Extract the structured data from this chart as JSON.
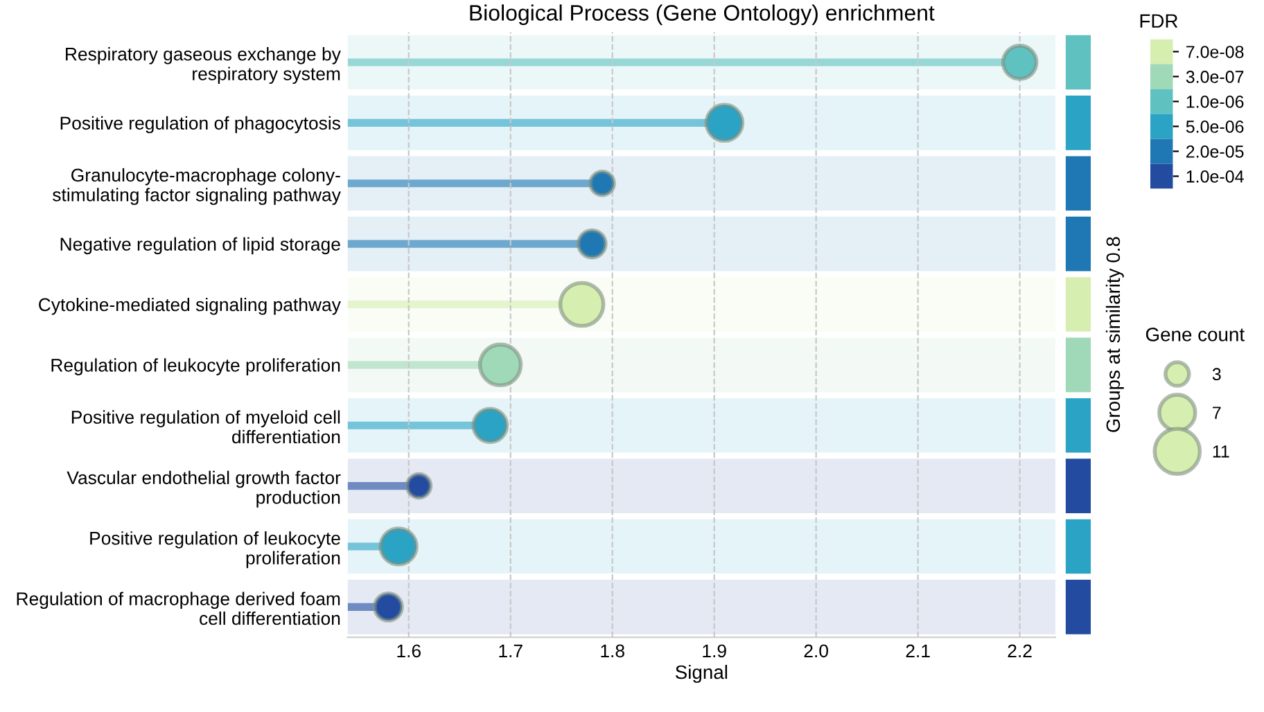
{
  "chart_data": {
    "type": "lollipop",
    "orientation": "horizontal",
    "title": "Biological Process (Gene Ontology) enrichment",
    "xlabel": "Signal",
    "y2label": "Groups at similarity 0.8",
    "legend_title": "FDR",
    "categories": [
      "Respiratory gaseous exchange by\nrespiratory system",
      "Positive regulation of phagocytosis",
      "Granulocyte-macrophage colony-\nstimulating factor signaling pathway",
      "Negative regulation of lipid storage",
      "Cytokine-mediated signaling pathway",
      "Regulation of leukocyte proliferation",
      "Positive regulation of myeloid cell\ndifferentiation",
      "Vascular endothelial growth factor\nproduction",
      "Positive regulation of leukocyte\nproliferation",
      "Regulation of macrophage derived foam\ncell differentiation"
    ],
    "series": [
      {
        "name": "7.0e-08",
        "color": "#d6efb0",
        "values": [
          null,
          null,
          null,
          null,
          1.77,
          null,
          null,
          null,
          null,
          null
        ],
        "sizes": [
          null,
          null,
          null,
          null,
          10,
          null,
          null,
          null,
          null,
          null
        ]
      },
      {
        "name": "3.0e-07",
        "color": "#9fd9b8",
        "values": [
          null,
          null,
          null,
          null,
          null,
          1.69,
          null,
          null,
          null,
          null
        ],
        "sizes": [
          null,
          null,
          null,
          null,
          null,
          9,
          null,
          null,
          null,
          null
        ]
      },
      {
        "name": "1.0e-06",
        "color": "#5fc1c0",
        "values": [
          2.2,
          null,
          null,
          null,
          null,
          null,
          null,
          null,
          null,
          null
        ],
        "sizes": [
          6,
          null,
          null,
          null,
          null,
          null,
          null,
          null,
          null,
          null
        ]
      },
      {
        "name": "5.0e-06",
        "color": "#2ba3c4",
        "values": [
          null,
          1.91,
          null,
          null,
          null,
          null,
          1.68,
          null,
          1.59,
          null
        ],
        "sizes": [
          null,
          7,
          null,
          null,
          null,
          null,
          6,
          null,
          7,
          null
        ]
      },
      {
        "name": "2.0e-05",
        "color": "#1f78b4",
        "values": [
          null,
          null,
          1.79,
          1.78,
          null,
          null,
          null,
          null,
          null,
          null
        ],
        "sizes": [
          null,
          null,
          3,
          4,
          null,
          null,
          null,
          null,
          null,
          null
        ]
      },
      {
        "name": "1.0e-04",
        "color": "#234ca0",
        "values": [
          null,
          null,
          null,
          null,
          null,
          null,
          null,
          1.61,
          null,
          1.58
        ],
        "sizes": [
          null,
          null,
          null,
          null,
          null,
          null,
          null,
          3,
          null,
          4
        ]
      }
    ],
    "size_legend": [
      3,
      7,
      11
    ],
    "annotations": [
      "Gene count"
    ],
    "bands": [
      {
        "axis": "y",
        "from": "Respiratory gaseous exchange by\nrespiratory system",
        "to": "Respiratory gaseous exchange by\nrespiratory system",
        "color": "#5fc1c0"
      },
      {
        "axis": "y",
        "from": "Positive regulation of phagocytosis",
        "to": "Positive regulation of phagocytosis",
        "color": "#2ba3c4"
      },
      {
        "axis": "y",
        "from": "Granulocyte-macrophage colony-\nstimulating factor signaling pathway",
        "to": "Granulocyte-macrophage colony-\nstimulating factor signaling pathway",
        "color": "#1f78b4"
      },
      {
        "axis": "y",
        "from": "Negative regulation of lipid storage",
        "to": "Negative regulation of lipid storage",
        "color": "#1f78b4"
      },
      {
        "axis": "y",
        "from": "Cytokine-mediated signaling pathway",
        "to": "Cytokine-mediated signaling pathway",
        "color": "#d6efb0"
      },
      {
        "axis": "y",
        "from": "Regulation of leukocyte proliferation",
        "to": "Regulation of leukocyte proliferation",
        "color": "#9fd9b8"
      },
      {
        "axis": "y",
        "from": "Positive regulation of myeloid cell\ndifferentiation",
        "to": "Positive regulation of myeloid cell\ndifferentiation",
        "color": "#2ba3c4"
      },
      {
        "axis": "y",
        "from": "Vascular endothelial growth factor\nproduction",
        "to": "Vascular endothelial growth factor\nproduction",
        "color": "#234ca0"
      },
      {
        "axis": "y",
        "from": "Positive regulation of leukocyte\nproliferation",
        "to": "Positive regulation of leukocyte\nproliferation",
        "color": "#2ba3c4"
      },
      {
        "axis": "y",
        "from": "Regulation of macrophage derived foam\ncell differentiation",
        "to": "Regulation of macrophage derived foam\ncell differentiation",
        "color": "#234ca0"
      }
    ],
    "xlim": [
      1.54,
      2.235
    ],
    "xticks": [
      1.6,
      1.7,
      1.8,
      1.9,
      {
        "value": 2.0,
        "label": "2.0"
      },
      2.1,
      2.2
    ],
    "grid": "x",
    "legend": "right"
  }
}
